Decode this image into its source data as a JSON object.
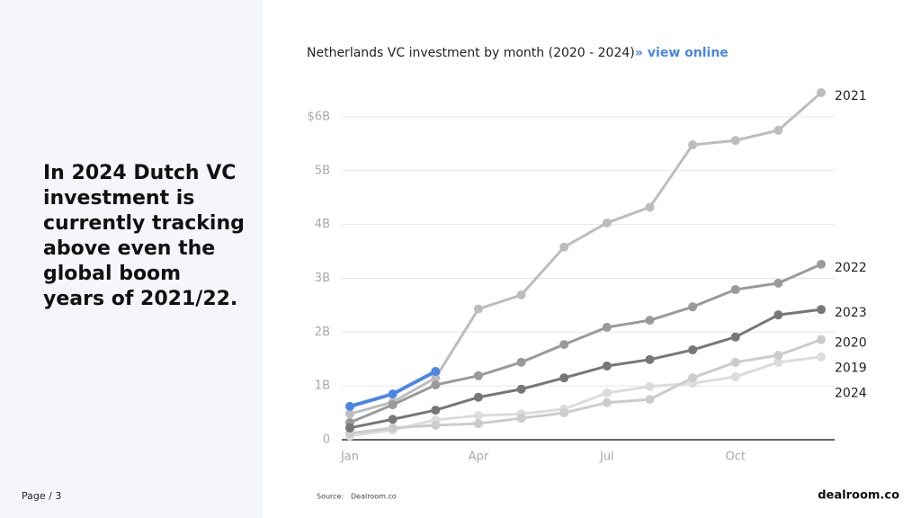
{
  "page": {
    "headline_lines": [
      "In 2024 Dutch VC",
      "investment is",
      "currently tracking",
      "above even the",
      "global boom",
      "years of 2021/22."
    ],
    "page_label": "Page / 3",
    "source_label": "Source:",
    "source": "Dealroom.co",
    "logo": "dealroom.co",
    "link": "» view online"
  },
  "chart_data": {
    "type": "line",
    "title": "Netherlands VC investment by month (2020 - 2024)",
    "categories": [
      "Jan",
      null,
      null,
      "Apr",
      null,
      null,
      "Jul",
      null,
      null,
      "Oct",
      null,
      null
    ],
    "ylim": [
      0,
      6.5
    ],
    "yticks": [
      0,
      {
        "value": 1,
        "label": "1B"
      },
      {
        "value": 2,
        "label": "2B"
      },
      {
        "value": 3,
        "label": "3B"
      },
      {
        "value": 4,
        "label": "4B"
      },
      {
        "value": 5,
        "label": "5B"
      },
      {
        "value": 6,
        "label": "$6B"
      }
    ],
    "grid": true,
    "series": [
      {
        "name": "2019",
        "color": "#dcdcdc",
        "values": [
          0.07,
          0.18,
          0.37,
          0.45,
          0.48,
          0.57,
          0.87,
          0.99,
          1.05,
          1.17,
          1.44,
          1.54
        ]
      },
      {
        "name": "2020",
        "color": "#cccccc",
        "values": [
          0.12,
          0.22,
          0.27,
          0.3,
          0.4,
          0.5,
          0.69,
          0.75,
          1.15,
          1.44,
          1.57,
          1.86
        ]
      },
      {
        "name": "2021",
        "color": "#bdbdbd",
        "values": [
          0.48,
          0.7,
          1.15,
          2.43,
          2.69,
          3.58,
          4.03,
          4.32,
          5.48,
          5.56,
          5.75,
          6.45
        ]
      },
      {
        "name": "2022",
        "color": "#9a9a9a",
        "values": [
          0.32,
          0.65,
          1.02,
          1.19,
          1.44,
          1.77,
          2.09,
          2.22,
          2.47,
          2.79,
          2.91,
          3.26
        ]
      },
      {
        "name": "2023",
        "color": "#777777",
        "values": [
          0.22,
          0.38,
          0.55,
          0.79,
          0.94,
          1.15,
          1.37,
          1.49,
          1.67,
          1.91,
          2.32,
          2.42
        ]
      },
      {
        "name": "2024",
        "color": "#4a86e8",
        "values": [
          0.62,
          0.85,
          1.27,
          null,
          null,
          null,
          null,
          null,
          null,
          null,
          null,
          null
        ]
      }
    ]
  }
}
